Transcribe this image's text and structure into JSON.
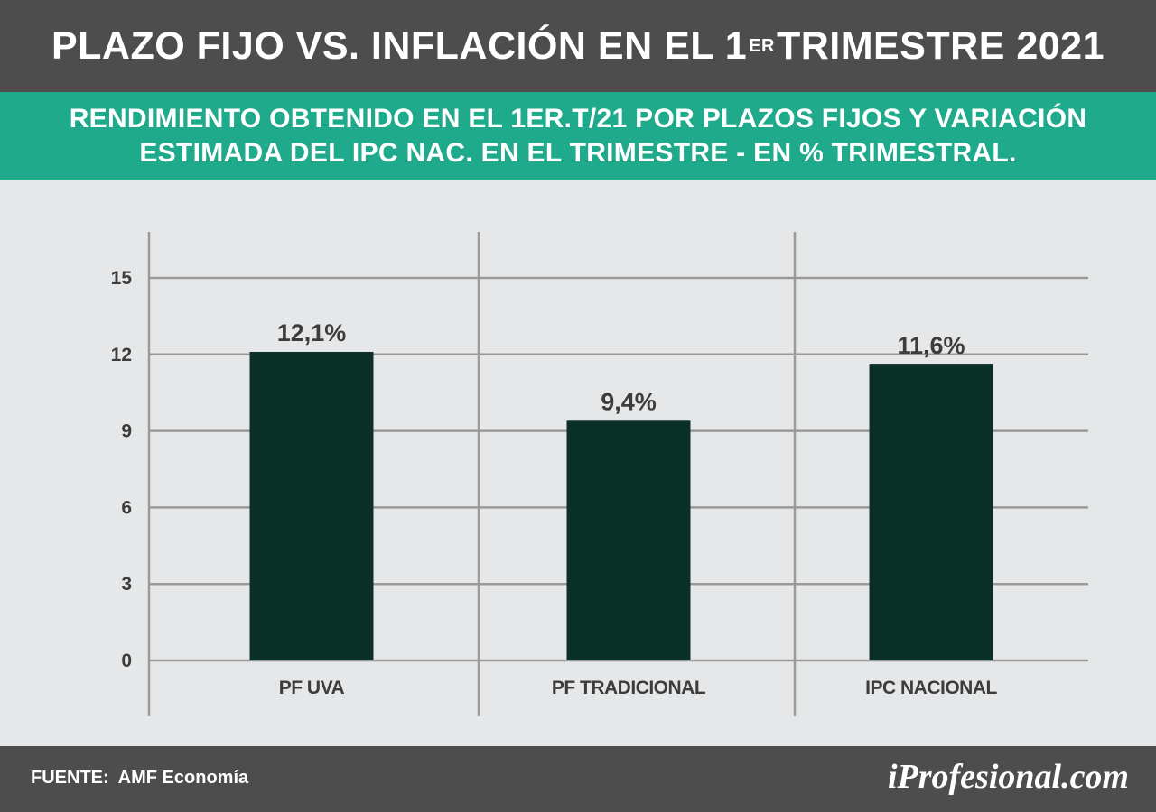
{
  "header": {
    "title_main": "PLAZO FIJO VS. INFLACIÓN EN EL 1",
    "title_sup": "ER",
    "title_end": "TRIMESTRE 2021"
  },
  "subtitle": {
    "line1": "RENDIMIENTO OBTENIDO EN EL 1ER.T/21 POR PLAZOS FIJOS Y VARIACIÓN",
    "line2": "ESTIMADA DEL IPC NAC. EN EL TRIMESTRE - EN % TRIMESTRAL."
  },
  "footer": {
    "source_label": "FUENTE:",
    "source_value": "AMF Economía",
    "logo_text": "iProfesional.com"
  },
  "colors": {
    "bar": "#0a3028",
    "grid": "#9a9a9a",
    "text": "#3c3c3c",
    "accent": "#1faa8c",
    "header": "#4d4d4d"
  },
  "chart_data": {
    "type": "bar",
    "title": "PLAZO FIJO VS. INFLACIÓN EN EL 1ER TRIMESTRE 2021",
    "subtitle": "RENDIMIENTO OBTENIDO EN EL 1ER.T/21 POR PLAZOS FIJOS Y VARIACIÓN ESTIMADA DEL IPC NAC. EN EL TRIMESTRE - EN % TRIMESTRAL.",
    "categories": [
      "PF UVA",
      "PF TRADICIONAL",
      "IPC NACIONAL"
    ],
    "values": [
      12.1,
      9.4,
      11.6
    ],
    "data_labels": [
      "12,1%",
      "9,4%",
      "11,6%"
    ],
    "ylim": [
      0,
      15
    ],
    "yticks": [
      0,
      3,
      6,
      9,
      12,
      15
    ],
    "xlabel": "",
    "ylabel": "",
    "grid": true,
    "legend": "none"
  }
}
